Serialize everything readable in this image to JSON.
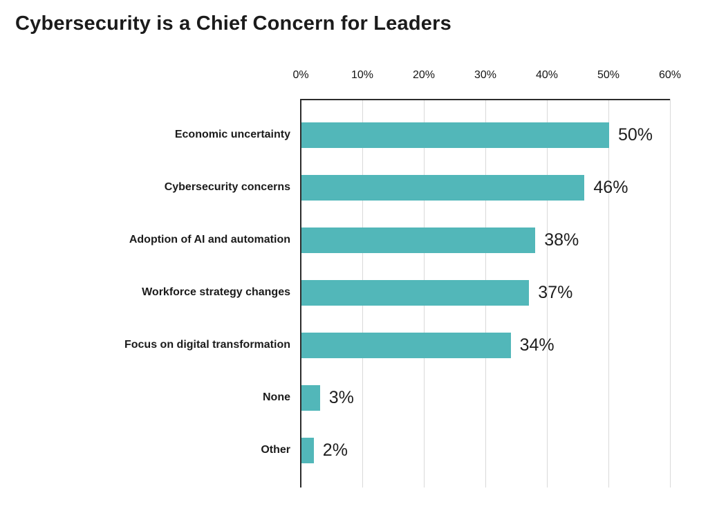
{
  "title": "Cybersecurity is a Chief Concern for Leaders",
  "chart_data": {
    "type": "bar",
    "orientation": "horizontal",
    "title": "Cybersecurity is a Chief Concern for Leaders",
    "categories": [
      "Economic uncertainty",
      "Cybersecurity concerns",
      "Adoption of AI and automation",
      "Workforce strategy changes",
      "Focus on digital transformation",
      "None",
      "Other"
    ],
    "values": [
      50,
      46,
      38,
      37,
      34,
      3,
      2
    ],
    "value_labels": [
      "50%",
      "46%",
      "38%",
      "37%",
      "34%",
      "3%",
      "2%"
    ],
    "x_tick_values": [
      0,
      10,
      20,
      30,
      40,
      50,
      60
    ],
    "x_tick_labels": [
      "0%",
      "10%",
      "20%",
      "30%",
      "40%",
      "50%",
      "60%"
    ],
    "xlim": [
      0,
      60
    ],
    "axis_position": "top",
    "grid": true,
    "legend": false,
    "colors": {
      "bar": "#52b7b9",
      "axis_line": "#2b2b2b",
      "gridline": "#d9d9d9",
      "text": "#1b1b1b"
    }
  }
}
